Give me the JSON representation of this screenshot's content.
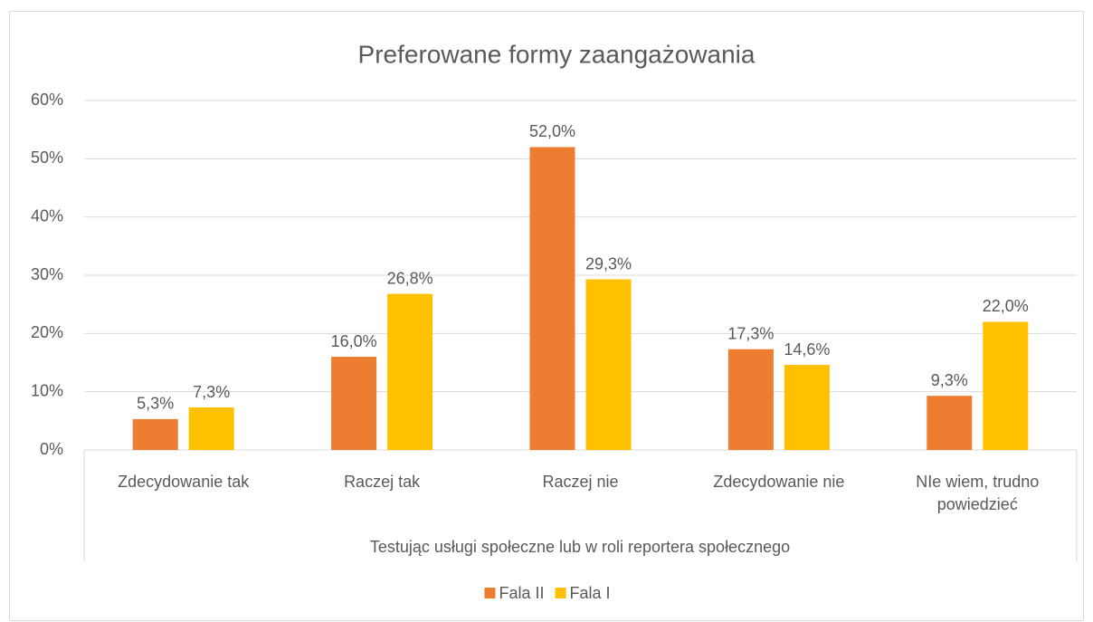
{
  "chart_data": {
    "type": "bar",
    "title": "Preferowane formy zaangażowania",
    "categories": [
      "Zdecydowanie tak",
      "Raczej tak",
      "Raczej nie",
      "Zdecydowanie nie",
      "NIe wiem, trudno powiedzieć"
    ],
    "x_group_label": "Testując usługi społeczne lub w roli reportera społecznego",
    "series": [
      {
        "name": "Fala II",
        "color": "#ed7d31",
        "values": [
          5.3,
          16.0,
          52.0,
          17.3,
          9.3
        ],
        "value_labels": [
          "5,3%",
          "16,0%",
          "52,0%",
          "17,3%",
          "9,3%"
        ]
      },
      {
        "name": "Fala I",
        "color": "#ffc000",
        "values": [
          7.3,
          26.8,
          29.3,
          14.6,
          22.0
        ],
        "value_labels": [
          "7,3%",
          "26,8%",
          "29,3%",
          "14,6%",
          "22,0%"
        ]
      }
    ],
    "ylim": [
      0,
      60
    ],
    "yticks": [
      {
        "value": 0,
        "label": "0%"
      },
      {
        "value": 10,
        "label": "10%"
      },
      {
        "value": 20,
        "label": "20%"
      },
      {
        "value": 30,
        "label": "30%"
      },
      {
        "value": 40,
        "label": "40%"
      },
      {
        "value": 50,
        "label": "50%"
      },
      {
        "value": 60,
        "label": "60%"
      }
    ],
    "grid": true,
    "legend": "bottom"
  }
}
